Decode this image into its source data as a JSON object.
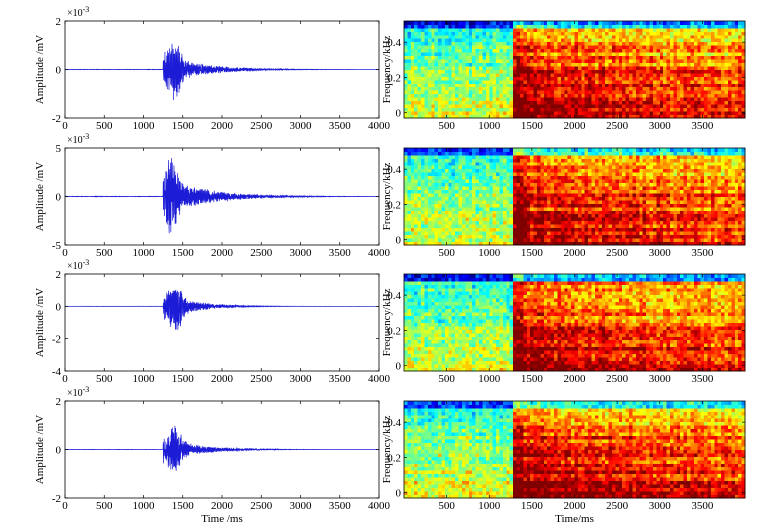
{
  "figure": {
    "wave_xlabel": "Time /ms",
    "spec_xlabel": "Time/ms",
    "wave_ylabel": "Amplitude /mV",
    "spec_ylabel": "Frequency/kHz",
    "exponent_base": "×10",
    "exponent_power": "-3"
  },
  "chart_data": [
    {
      "type": "line",
      "panel": "waveform-1",
      "xlim": [
        0,
        4000
      ],
      "ylim": [
        -2,
        2
      ],
      "y_exponent": -3,
      "xticks": [
        0,
        500,
        1000,
        1500,
        2000,
        2500,
        3000,
        3500,
        4000
      ],
      "yticks": [
        -2,
        0,
        2
      ],
      "xlabel": "",
      "ylabel": "Amplitude /mV",
      "line_color": "#1c1cd6",
      "onset_ms": 1250,
      "peak_ms": 1400,
      "peak_amplitude": 1.5,
      "min_amplitude": -1.5,
      "decay_end_ms": 3200
    },
    {
      "type": "heatmap",
      "panel": "spectrogram-1",
      "xlim": [
        0,
        4000
      ],
      "ylim": [
        -0.03,
        0.52
      ],
      "xticks": [
        500,
        1000,
        1500,
        2000,
        2500,
        3000,
        3500
      ],
      "yticks": [
        0,
        0.2,
        0.4
      ],
      "xlabel": "",
      "ylabel": "Frequency/kHz",
      "colormap": "jet",
      "onset_ms": 1280
    },
    {
      "type": "line",
      "panel": "waveform-2",
      "xlim": [
        0,
        4000
      ],
      "ylim": [
        -5,
        5
      ],
      "y_exponent": -3,
      "xticks": [
        0,
        500,
        1000,
        1500,
        2000,
        2500,
        3000,
        3500,
        4000
      ],
      "yticks": [
        -5,
        0,
        5
      ],
      "xlabel": "",
      "ylabel": "Amplitude /mV",
      "line_color": "#1c1cd6",
      "onset_ms": 1250,
      "peak_ms": 1350,
      "peak_amplitude": 4.5,
      "min_amplitude": -4.0,
      "decay_end_ms": 3500
    },
    {
      "type": "heatmap",
      "panel": "spectrogram-2",
      "xlim": [
        0,
        4000
      ],
      "ylim": [
        -0.03,
        0.52
      ],
      "xticks": [
        500,
        1000,
        1500,
        2000,
        2500,
        3000,
        3500
      ],
      "yticks": [
        0,
        0.2,
        0.4
      ],
      "xlabel": "",
      "ylabel": "Frequency/kHz",
      "colormap": "jet",
      "onset_ms": 1280
    },
    {
      "type": "line",
      "panel": "waveform-3",
      "xlim": [
        0,
        4000
      ],
      "ylim": [
        -4,
        2
      ],
      "y_exponent": -3,
      "xticks": [
        0,
        500,
        1000,
        1500,
        2000,
        2500,
        3000,
        3500,
        4000
      ],
      "yticks": [
        -4,
        -2,
        0,
        2
      ],
      "xlabel": "",
      "ylabel": "Amplitude /mV",
      "line_color": "#1c1cd6",
      "onset_ms": 1250,
      "peak_ms": 1420,
      "peak_amplitude": 1.0,
      "min_amplitude": -2.0,
      "decay_end_ms": 2800
    },
    {
      "type": "heatmap",
      "panel": "spectrogram-3",
      "xlim": [
        0,
        4000
      ],
      "ylim": [
        -0.03,
        0.52
      ],
      "xticks": [
        500,
        1000,
        1500,
        2000,
        2500,
        3000,
        3500
      ],
      "yticks": [
        0,
        0.2,
        0.4
      ],
      "xlabel": "",
      "ylabel": "Frequency/kHz",
      "colormap": "jet",
      "onset_ms": 1300
    },
    {
      "type": "line",
      "panel": "waveform-4",
      "xlim": [
        0,
        4000
      ],
      "ylim": [
        -2,
        2
      ],
      "y_exponent": -3,
      "xticks": [
        0,
        500,
        1000,
        1500,
        2000,
        2500,
        3000,
        3500,
        4000
      ],
      "yticks": [
        -2,
        0,
        2
      ],
      "xlabel": "Time /ms",
      "ylabel": "Amplitude /mV",
      "line_color": "#1c1cd6",
      "onset_ms": 1250,
      "peak_ms": 1400,
      "peak_amplitude": 1.0,
      "min_amplitude": -1.2,
      "decay_end_ms": 3000
    },
    {
      "type": "heatmap",
      "panel": "spectrogram-4",
      "xlim": [
        0,
        4000
      ],
      "ylim": [
        -0.03,
        0.52
      ],
      "xticks": [
        500,
        1000,
        1500,
        2000,
        2500,
        3000,
        3500
      ],
      "yticks": [
        0,
        0.2,
        0.4
      ],
      "xlabel": "Time/ms",
      "ylabel": "Frequency/kHz",
      "colormap": "jet",
      "onset_ms": 1300
    }
  ]
}
